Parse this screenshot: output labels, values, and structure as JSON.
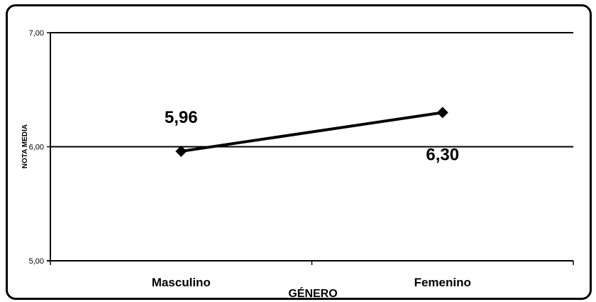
{
  "chart_data": {
    "type": "line",
    "categories": [
      "Masculino",
      "Femenino"
    ],
    "series": [
      {
        "values": [
          5.96,
          6.3
        ],
        "data_labels": [
          "5,96",
          "6,30"
        ]
      }
    ],
    "xlabel": "GÉNERO",
    "ylabel": "NOTA MEDIA",
    "ylim": [
      5.0,
      7.0
    ],
    "yticks": [
      5.0,
      6.0,
      7.0
    ],
    "ytick_labels": [
      "5,00",
      "6,00",
      "7,00"
    ],
    "grid": true,
    "marker": "diamond",
    "line_color": "#000000"
  }
}
